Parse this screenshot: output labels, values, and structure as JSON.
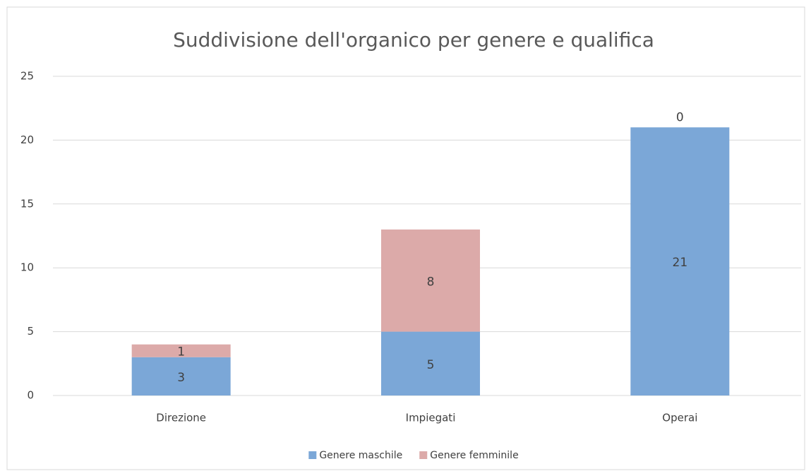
{
  "chart_data": {
    "type": "bar",
    "stacked": true,
    "title": "Suddivisione dell'organico per genere e qualifica",
    "categories": [
      "Direzione",
      "Impiegati",
      "Operai"
    ],
    "series": [
      {
        "name": "Genere maschile",
        "color": "#7ba7d7",
        "values": [
          3,
          5,
          21
        ]
      },
      {
        "name": "Genere femminile",
        "color": "#dcaaa9",
        "values": [
          1,
          8,
          0
        ]
      }
    ],
    "ylim": [
      0,
      25
    ],
    "yticks": [
      0,
      5,
      10,
      15,
      20,
      25
    ],
    "grid": true,
    "legend": "bottom"
  }
}
